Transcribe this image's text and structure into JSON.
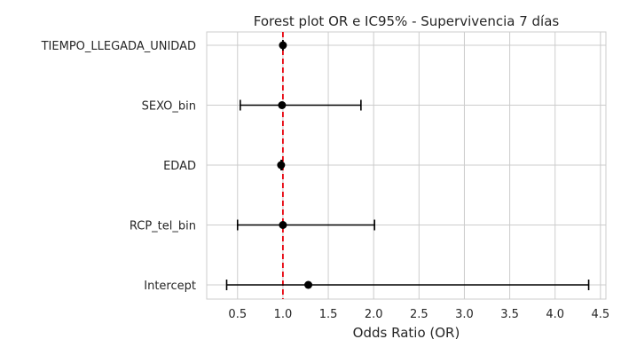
{
  "chart_data": {
    "type": "scatter",
    "subtype": "forest-plot",
    "title": "Forest plot OR e IC95% - Supervivencia 7 días",
    "xlabel": "Odds Ratio (OR)",
    "ylabel": "",
    "xlim": [
      0.16,
      4.56
    ],
    "x_ticks": [
      0.5,
      1.0,
      1.5,
      2.0,
      2.5,
      3.0,
      3.5,
      4.0,
      4.5
    ],
    "x_tick_labels": [
      "0.5",
      "1.0",
      "1.5",
      "2.0",
      "2.5",
      "3.0",
      "3.5",
      "4.0",
      "4.5"
    ],
    "grid": true,
    "reference_line": {
      "x": 1.0,
      "color": "#e8000b",
      "style": "dashed"
    },
    "colors": {
      "points": "#000000",
      "grid": "#cccccc",
      "background": "#ffffff"
    },
    "rows": [
      {
        "label": "TIEMPO_LLEGADA_UNIDAD",
        "or": 1.0,
        "ci_low": 1.0,
        "ci_high": 1.0
      },
      {
        "label": "SEXO_bin",
        "or": 0.99,
        "ci_low": 0.53,
        "ci_high": 1.86
      },
      {
        "label": "EDAD",
        "or": 0.98,
        "ci_low": 0.98,
        "ci_high": 0.99
      },
      {
        "label": "RCP_tel_bin",
        "or": 1.0,
        "ci_low": 0.5,
        "ci_high": 2.01
      },
      {
        "label": "Intercept",
        "or": 1.28,
        "ci_low": 0.38,
        "ci_high": 4.37
      }
    ]
  }
}
